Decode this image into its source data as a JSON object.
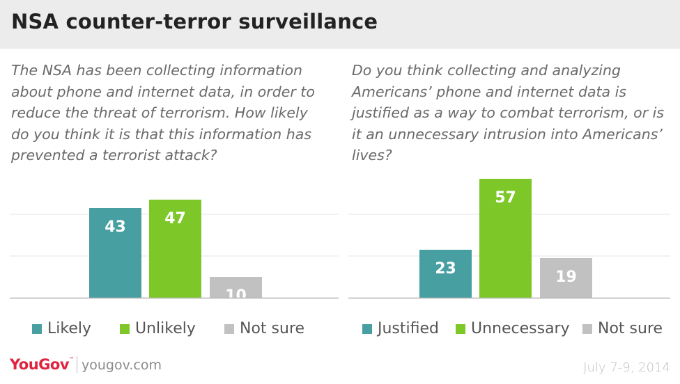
{
  "title": "NSA counter-terror surveillance",
  "questions": {
    "left": "The NSA has been collecting information about phone and internet data, in order to reduce the threat of terrorism. How likely do you think it is that this information has prevented a terrorist attack?",
    "right": "Do you think collecting and analyzing Americans’ phone and internet data is justified as a way to combat terrorism, or is it an unnecessary intrusion into Americans’ lives?"
  },
  "colors": {
    "teal": "#479fa2",
    "green": "#7dc828",
    "gray": "#c1c1c1",
    "grid": "#e6e6e6",
    "axis": "#b5b5b5"
  },
  "chart_data": [
    {
      "type": "bar",
      "categories": [
        "Likely",
        "Unlikely",
        "Not sure"
      ],
      "values": [
        43,
        47,
        10
      ],
      "ylim": [
        0,
        60
      ],
      "legend": "bottom",
      "grid": true
    },
    {
      "type": "bar",
      "categories": [
        "Justified",
        "Unnecessary",
        "Not sure"
      ],
      "values": [
        23,
        57,
        19
      ],
      "ylim": [
        0,
        60
      ],
      "legend": "bottom",
      "grid": true
    }
  ],
  "footer": {
    "brand": "YouGov",
    "site": "yougov.com",
    "date": "July 7-9, 2014"
  }
}
